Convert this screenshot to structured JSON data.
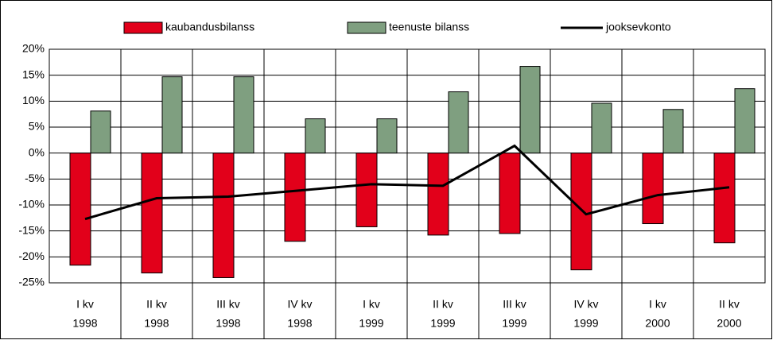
{
  "chart_data": {
    "type": "bar-line",
    "categories": [
      [
        "I kv",
        "1998"
      ],
      [
        "II kv",
        "1998"
      ],
      [
        "III kv",
        "1998"
      ],
      [
        "IV kv",
        "1998"
      ],
      [
        "I kv",
        "1999"
      ],
      [
        "II kv",
        "1999"
      ],
      [
        "III kv",
        "1999"
      ],
      [
        "IV kv",
        "1999"
      ],
      [
        "I kv",
        "2000"
      ],
      [
        "II kv",
        "2000"
      ]
    ],
    "series": [
      {
        "name": "kaubandusbilanss",
        "type": "bar",
        "color": "#e2001a",
        "values": [
          -21.6,
          -23.1,
          -24.0,
          -17.0,
          -14.2,
          -15.8,
          -15.5,
          -22.5,
          -13.6,
          -17.3
        ]
      },
      {
        "name": "teenuste bilanss",
        "type": "bar",
        "color": "#7f9f80",
        "values": [
          8.1,
          14.7,
          14.7,
          6.6,
          6.6,
          11.8,
          16.7,
          9.6,
          8.4,
          12.4
        ]
      },
      {
        "name": "jooksevkonto",
        "type": "line",
        "color": "#000000",
        "values": [
          -12.7,
          -8.7,
          -8.4,
          -7.2,
          -6.0,
          -6.3,
          1.4,
          -11.8,
          -8.1,
          -6.6
        ]
      }
    ],
    "ylim": [
      -25,
      20
    ],
    "yticks": [
      {
        "value": -25,
        "label": "-25%"
      },
      {
        "value": -20,
        "label": "-20%"
      },
      {
        "value": -15,
        "label": "-15%"
      },
      {
        "value": -10,
        "label": "-10%"
      },
      {
        "value": -5,
        "label": "-5%"
      },
      {
        "value": 0,
        "label": "0%"
      },
      {
        "value": 5,
        "label": "5%"
      },
      {
        "value": 10,
        "label": "10%"
      },
      {
        "value": 15,
        "label": "15%"
      },
      {
        "value": 20,
        "label": "20%"
      }
    ],
    "grid": true,
    "legend": "top"
  }
}
